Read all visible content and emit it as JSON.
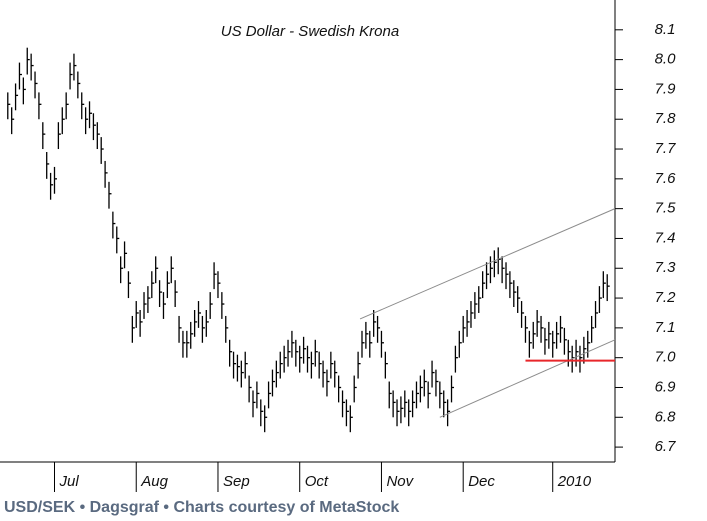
{
  "chart_data": {
    "type": "ohlc",
    "title": "US Dollar - Swedish Krona",
    "footer": "USD/SEK • Dagsgraf • Charts courtesy of MetaStock",
    "color": "#000000",
    "high": [
      7.89,
      7.84,
      7.92,
      7.99,
      7.94,
      8.04,
      8.02,
      7.96,
      7.89,
      7.79,
      7.69,
      7.62,
      7.64,
      7.79,
      7.84,
      7.89,
      7.99,
      8.02,
      7.96,
      7.89,
      7.84,
      7.86,
      7.82,
      7.79,
      7.74,
      7.66,
      7.59,
      7.49,
      7.44,
      7.34,
      7.39,
      7.29,
      7.14,
      7.19,
      7.16,
      7.22,
      7.24,
      7.29,
      7.34,
      7.26,
      7.22,
      7.29,
      7.34,
      7.26,
      7.14,
      7.09,
      7.09,
      7.12,
      7.16,
      7.19,
      7.14,
      7.16,
      7.22,
      7.32,
      7.29,
      7.22,
      7.14,
      7.06,
      7.02,
      7.01,
      6.99,
      7.02,
      6.94,
      6.89,
      6.92,
      6.86,
      6.84,
      6.92,
      6.96,
      6.99,
      7.02,
      7.04,
      7.06,
      7.09,
      7.06,
      7.04,
      7.07,
      7.04,
      7.02,
      7.06,
      7.02,
      6.99,
      6.96,
      7.02,
      6.99,
      6.94,
      6.89,
      6.86,
      6.84,
      6.94,
      7.02,
      7.09,
      7.12,
      7.09,
      7.16,
      7.14,
      7.09,
      7.02,
      6.92,
      6.89,
      6.86,
      6.87,
      6.89,
      6.86,
      6.89,
      6.92,
      6.94,
      6.96,
      6.92,
      6.99,
      6.96,
      6.92,
      6.89,
      6.86,
      6.94,
      7.04,
      7.09,
      7.14,
      7.16,
      7.19,
      7.22,
      7.24,
      7.29,
      7.32,
      7.34,
      7.36,
      7.37,
      7.34,
      7.32,
      7.29,
      7.26,
      7.24,
      7.19,
      7.14,
      7.09,
      7.12,
      7.16,
      7.14,
      7.1,
      7.12,
      7.09,
      7.12,
      7.14,
      7.1,
      7.06,
      7.04,
      7.06,
      7.04,
      7.07,
      7.09,
      7.14,
      7.19,
      7.24,
      7.29,
      7.28
    ],
    "low": [
      7.8,
      7.75,
      7.83,
      7.9,
      7.85,
      7.95,
      7.93,
      7.87,
      7.8,
      7.7,
      7.6,
      7.53,
      7.55,
      7.7,
      7.75,
      7.8,
      7.9,
      7.93,
      7.87,
      7.8,
      7.75,
      7.77,
      7.73,
      7.7,
      7.65,
      7.57,
      7.5,
      7.4,
      7.35,
      7.25,
      7.3,
      7.2,
      7.05,
      7.1,
      7.07,
      7.13,
      7.15,
      7.2,
      7.25,
      7.17,
      7.13,
      7.2,
      7.25,
      7.17,
      7.05,
      7.0,
      7.0,
      7.03,
      7.07,
      7.1,
      7.05,
      7.07,
      7.13,
      7.23,
      7.2,
      7.13,
      7.05,
      6.97,
      6.93,
      6.92,
      6.9,
      6.93,
      6.85,
      6.8,
      6.83,
      6.77,
      6.75,
      6.83,
      6.87,
      6.9,
      6.93,
      6.95,
      6.97,
      7.0,
      6.97,
      6.95,
      6.98,
      6.95,
      6.93,
      6.97,
      6.93,
      6.9,
      6.87,
      6.93,
      6.9,
      6.85,
      6.8,
      6.77,
      6.75,
      6.85,
      6.93,
      7.0,
      7.03,
      7.0,
      7.07,
      7.05,
      7.0,
      6.93,
      6.83,
      6.8,
      6.77,
      6.78,
      6.8,
      6.77,
      6.8,
      6.83,
      6.85,
      6.87,
      6.83,
      6.9,
      6.87,
      6.83,
      6.8,
      6.77,
      6.85,
      6.95,
      7.0,
      7.05,
      7.07,
      7.1,
      7.13,
      7.15,
      7.2,
      7.23,
      7.25,
      7.27,
      7.28,
      7.25,
      7.23,
      7.2,
      7.17,
      7.15,
      7.1,
      7.05,
      7.0,
      7.03,
      7.07,
      7.05,
      7.01,
      7.03,
      7.0,
      7.03,
      7.05,
      7.01,
      6.97,
      6.95,
      6.97,
      6.95,
      6.98,
      7.0,
      7.05,
      7.1,
      7.15,
      7.2,
      7.19
    ],
    "close": [
      7.85,
      7.8,
      7.88,
      7.95,
      7.9,
      8.0,
      7.98,
      7.92,
      7.85,
      7.75,
      7.65,
      7.58,
      7.6,
      7.75,
      7.8,
      7.85,
      7.95,
      7.98,
      7.92,
      7.85,
      7.8,
      7.82,
      7.78,
      7.75,
      7.7,
      7.62,
      7.55,
      7.45,
      7.4,
      7.3,
      7.35,
      7.25,
      7.1,
      7.15,
      7.12,
      7.18,
      7.2,
      7.25,
      7.3,
      7.22,
      7.18,
      7.25,
      7.3,
      7.22,
      7.1,
      7.05,
      7.05,
      7.08,
      7.12,
      7.15,
      7.1,
      7.12,
      7.18,
      7.28,
      7.25,
      7.18,
      7.1,
      7.02,
      6.98,
      6.97,
      6.95,
      6.98,
      6.9,
      6.85,
      6.88,
      6.82,
      6.8,
      6.88,
      6.92,
      6.95,
      6.98,
      7.0,
      7.02,
      7.05,
      7.02,
      7.0,
      7.03,
      7.0,
      6.98,
      7.02,
      6.98,
      6.95,
      6.92,
      6.98,
      6.95,
      6.9,
      6.85,
      6.82,
      6.8,
      6.9,
      6.98,
      7.05,
      7.08,
      7.05,
      7.12,
      7.1,
      7.05,
      6.98,
      6.88,
      6.85,
      6.82,
      6.83,
      6.85,
      6.82,
      6.85,
      6.88,
      6.9,
      6.92,
      6.88,
      6.95,
      6.92,
      6.88,
      6.85,
      6.82,
      6.9,
      7.0,
      7.05,
      7.1,
      7.12,
      7.15,
      7.18,
      7.2,
      7.25,
      7.28,
      7.3,
      7.32,
      7.33,
      7.3,
      7.28,
      7.25,
      7.22,
      7.2,
      7.15,
      7.1,
      7.05,
      7.08,
      7.12,
      7.1,
      7.06,
      7.08,
      7.05,
      7.08,
      7.1,
      7.06,
      7.02,
      7.0,
      7.02,
      7.0,
      7.03,
      7.05,
      7.1,
      7.15,
      7.2,
      7.25,
      7.24
    ],
    "xlim": [
      -2,
      156
    ],
    "xticks": [
      {
        "value": 12,
        "label": "Jul"
      },
      {
        "value": 33,
        "label": "Aug"
      },
      {
        "value": 54,
        "label": "Sep"
      },
      {
        "value": 75,
        "label": "Oct"
      },
      {
        "value": 96,
        "label": "Nov"
      },
      {
        "value": 117,
        "label": "Dec"
      },
      {
        "value": 140,
        "label": "2010"
      }
    ],
    "ylim": [
      6.65,
      8.2
    ],
    "yticks": [
      6.7,
      6.8,
      6.9,
      {
        "value": 7.0,
        "label": "7.0"
      },
      7.1,
      7.2,
      7.3,
      7.4,
      7.5,
      7.6,
      7.7,
      7.8,
      7.9,
      {
        "value": 8.0,
        "label": "8.0"
      },
      8.1
    ],
    "lines": [
      {
        "x": [
          90.5,
          156
        ],
        "y": [
          7.13,
          7.5
        ],
        "color": "#8c8c8c"
      },
      {
        "x": [
          111,
          156
        ],
        "y": [
          6.8,
          7.06
        ],
        "color": "#8c8c8c"
      },
      {
        "x": [
          133,
          156
        ],
        "y": [
          6.99,
          6.99
        ],
        "color": "#e8262a"
      }
    ]
  }
}
